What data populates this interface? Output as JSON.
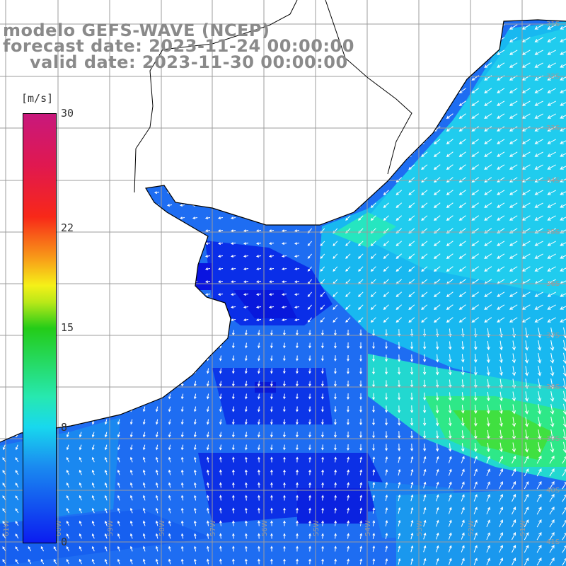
{
  "title": {
    "line1": "modelo GEFS-WAVE (NCEP)",
    "line2": "forecast date: 2023-11-24 00:00:00",
    "line3": "valid date: 2023-11-30 00:00:00"
  },
  "colorbar": {
    "unit": "[m/s]",
    "min": 0,
    "max": 30,
    "ticks": [
      {
        "label": "30",
        "value": 30
      },
      {
        "label": "22",
        "value": 22
      },
      {
        "label": "15",
        "value": 15
      },
      {
        "label": "8",
        "value": 8
      },
      {
        "label": "0",
        "value": 0
      }
    ],
    "colors": [
      "#0b1cf0",
      "#1a8cf0",
      "#18d8ee",
      "#24cc18",
      "#f5f018",
      "#f8a018",
      "#f82818",
      "#c8187c"
    ]
  },
  "grid": {
    "lon_labels": [
      "61W",
      "60W",
      "59W",
      "58W",
      "57W",
      "56W",
      "55W",
      "54W",
      "53W",
      "52W",
      "51W"
    ],
    "lat_labels": [
      "31S",
      "32S",
      "33S",
      "34S",
      "35S",
      "36S",
      "37S",
      "38S",
      "39S",
      "40S",
      "41S"
    ]
  }
}
